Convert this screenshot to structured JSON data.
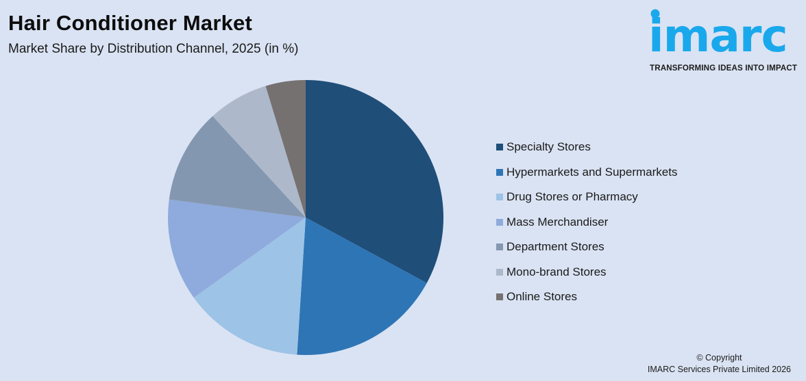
{
  "header": {
    "title": "Hair Conditioner Market",
    "subtitle": "Market Share by Distribution Channel, 2025 (in %)"
  },
  "logo": {
    "wordmark": "imarc",
    "tagline": "TRANSFORMING IDEAS INTO IMPACT",
    "color": "#1aa8ec"
  },
  "footer": {
    "copyright": "© Copyright",
    "company": "IMARC Services Private Limited 2026"
  },
  "chart_data": {
    "type": "pie",
    "title": "Hair Conditioner Market",
    "subtitle": "Market Share by Distribution Channel, 2025 (in %)",
    "start_angle": "12 o'clock, clockwise",
    "legend_position": "right",
    "categories": [
      "Specialty Stores",
      "Hypermarkets and Supermarkets",
      "Drug Stores or Pharmacy",
      "Mass Merchandiser",
      "Department Stores",
      "Mono-brand Stores",
      "Online Stores"
    ],
    "values": [
      32.9,
      18.1,
      14.1,
      12.0,
      11.1,
      7.1,
      4.7
    ],
    "colors": [
      "#1f4e79",
      "#2e75b6",
      "#9dc3e6",
      "#8faadc",
      "#8497b0",
      "#adb9ca",
      "#767171"
    ]
  }
}
